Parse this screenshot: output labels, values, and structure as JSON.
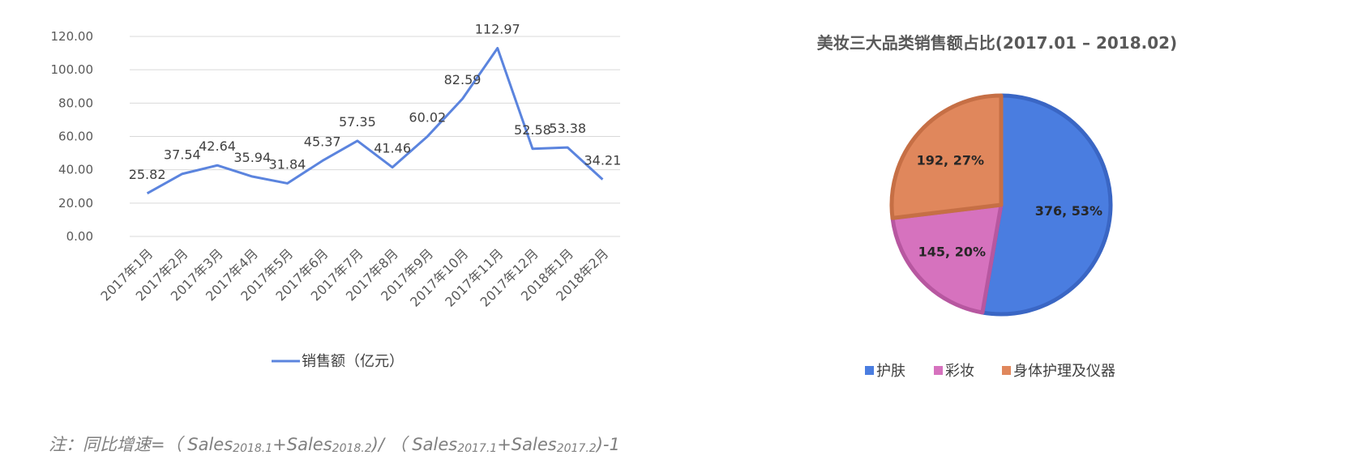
{
  "chart_data": [
    {
      "type": "line",
      "title": "",
      "xlabel": "",
      "ylabel": "",
      "categories": [
        "2017年1月",
        "2017年2月",
        "2017年3月",
        "2017年4月",
        "2017年5月",
        "2017年6月",
        "2017年7月",
        "2017年8月",
        "2017年9月",
        "2017年10月",
        "2017年11月",
        "2017年12月",
        "2018年1月",
        "2018年2月"
      ],
      "series": [
        {
          "name": "销售额（亿元）",
          "values": [
            25.82,
            37.54,
            42.64,
            35.94,
            31.84,
            45.37,
            57.35,
            41.46,
            60.02,
            82.59,
            112.97,
            52.58,
            53.38,
            34.21
          ]
        }
      ],
      "data_labels": [
        "25.82",
        "37.54",
        "42.64",
        "35.94",
        "31.84",
        "45.37",
        "57.35",
        "41.46",
        "60.02",
        "82.59",
        "112.97",
        "52.58",
        "53.38",
        "34.21"
      ],
      "ylim": [
        0,
        120
      ],
      "yticks": [
        "0.00",
        "20.00",
        "40.00",
        "60.00",
        "80.00",
        "100.00",
        "120.00"
      ],
      "grid": true,
      "legend_position": "bottom",
      "line_color": "#5b84de"
    },
    {
      "type": "pie",
      "title": "美妆三大品类销售额占比(2017.01 – 2018.02)",
      "slices": [
        {
          "name": "护肤",
          "value": 376,
          "percent": 53,
          "label": "376, 53%",
          "color": "#4a7de0",
          "edge": "#3a66c4"
        },
        {
          "name": "彩妆",
          "value": 145,
          "percent": 20,
          "label": "145, 20%",
          "color": "#d672be",
          "edge": "#b757a0"
        },
        {
          "name": "身体护理及仪器",
          "value": 192,
          "percent": 27,
          "label": "192, 27%",
          "color": "#e0875c",
          "edge": "#c66f45"
        }
      ],
      "legend_position": "bottom"
    }
  ],
  "note": {
    "prefix": "注：同比增速=（ Sales",
    "sub1": "2018.1",
    "mid1": "+Sales",
    "sub2": "2018.2",
    "mid2": ")/ （ Sales",
    "sub3": "2017.1",
    "mid3": "+Sales",
    "sub4": "2017.2",
    "suffix": ")-1"
  }
}
